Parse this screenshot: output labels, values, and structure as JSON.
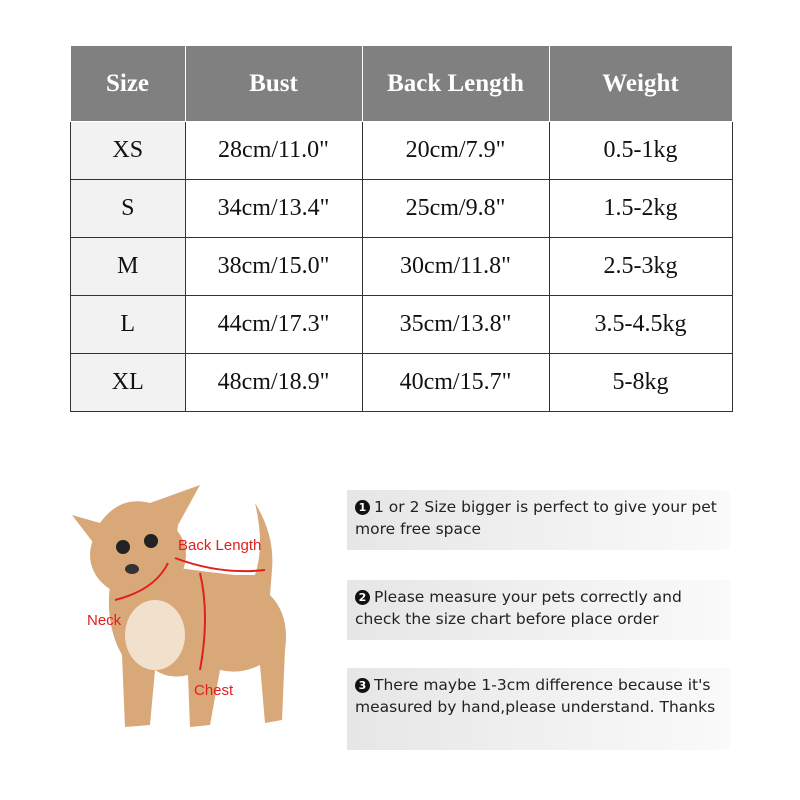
{
  "table": {
    "headers": [
      "Size",
      "Bust",
      "Back Length",
      "Weight"
    ],
    "rows": [
      [
        "XS",
        "28cm/11.0\"",
        "20cm/7.9\"",
        "0.5-1kg"
      ],
      [
        "S",
        "34cm/13.4\"",
        "25cm/9.8\"",
        "1.5-2kg"
      ],
      [
        "M",
        "38cm/15.0\"",
        "30cm/11.8\"",
        "2.5-3kg"
      ],
      [
        "L",
        "44cm/17.3\"",
        "35cm/13.8\"",
        "3.5-4.5kg"
      ],
      [
        "XL",
        "48cm/18.9\"",
        "40cm/15.7\"",
        "5-8kg"
      ]
    ]
  },
  "diagram": {
    "labels": {
      "back": "Back Length",
      "neck": "Neck",
      "chest": "Chest"
    }
  },
  "notes": [
    {
      "num": "1",
      "text": "1 or 2 Size bigger is perfect to give your pet more free space"
    },
    {
      "num": "2",
      "text": "Please measure your pets correctly and check the size chart before place order"
    },
    {
      "num": "3",
      "text": "There maybe 1-3cm difference because it's measured by hand,please understand. Thanks"
    }
  ],
  "colors": {
    "header_bg": "#808080",
    "label_red": "#e0201c"
  }
}
